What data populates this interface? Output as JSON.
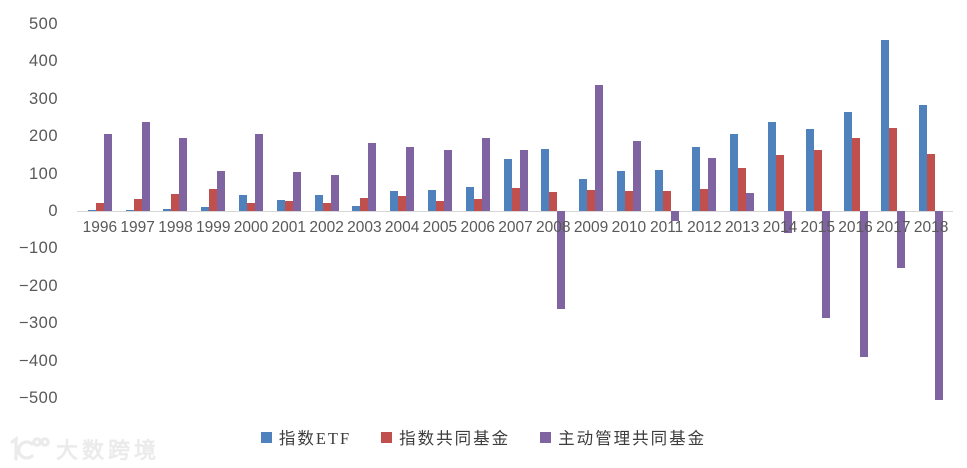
{
  "watermark": {
    "text": "大数跨境"
  },
  "axis": {
    "y_tick_step": 100,
    "y_label_color": "#595959",
    "axis_line_color": "#d6d6d6"
  },
  "chart_data": {
    "type": "bar",
    "title": "",
    "xlabel": "",
    "ylabel": "",
    "ylim": [
      -500,
      500
    ],
    "grid": false,
    "legend_position": "bottom",
    "categories": [
      "1996",
      "1997",
      "1998",
      "1999",
      "2000",
      "2001",
      "2002",
      "2003",
      "2004",
      "2005",
      "2006",
      "2007",
      "2008",
      "2009",
      "2010",
      "2011",
      "2012",
      "2013",
      "2014",
      "2015",
      "2016",
      "2017",
      "2018"
    ],
    "series": [
      {
        "name": "指数ETF",
        "color": "#4F81BD",
        "values": [
          1,
          2,
          5,
          11,
          42,
          30,
          44,
          14,
          54,
          55,
          65,
          140,
          167,
          86,
          106,
          110,
          171,
          206,
          238,
          220,
          266,
          458,
          284
        ]
      },
      {
        "name": "指数共同基金",
        "color": "#C0504D",
        "values": [
          21,
          32,
          45,
          59,
          21,
          26,
          22,
          34,
          41,
          28,
          33,
          62,
          50,
          57,
          54,
          54,
          60,
          115,
          150,
          163,
          196,
          223,
          153
        ]
      },
      {
        "name": "主动管理共同基金",
        "color": "#8064A2",
        "values": [
          207,
          238,
          196,
          106,
          206,
          104,
          95,
          181,
          172,
          163,
          194,
          164,
          -262,
          336,
          186,
          -27,
          142,
          48,
          -60,
          -287,
          -390,
          -152,
          -505
        ]
      }
    ]
  }
}
